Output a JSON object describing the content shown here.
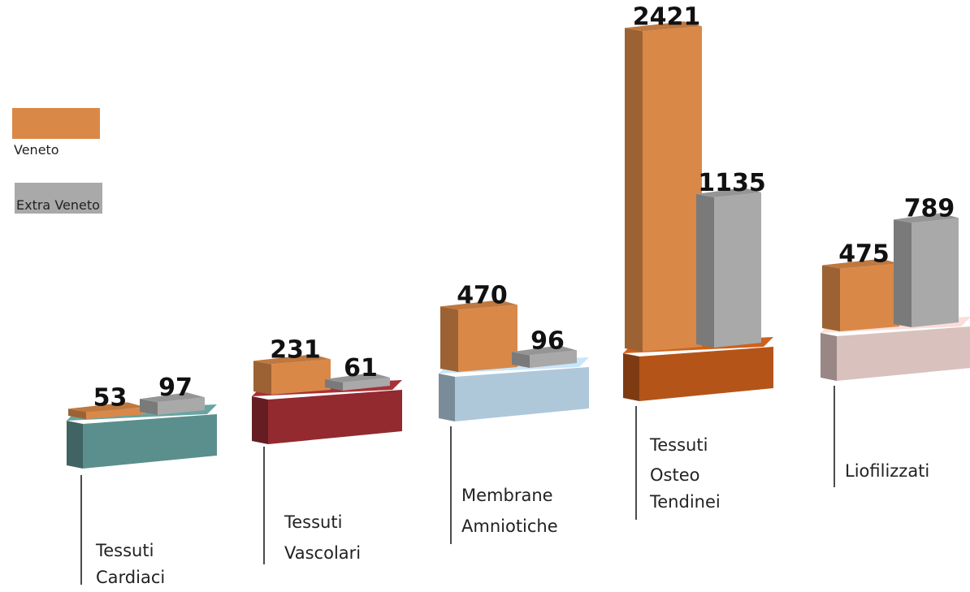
{
  "chart_data": {
    "type": "bar",
    "categories": [
      "Tessuti Cardiaci",
      "Tessuti Vascolari",
      "Membrane Amniotiche",
      "Tessuti Osteo Tendinei",
      "Liofilizzati"
    ],
    "category_colors": [
      "#5a8f8d",
      "#922a30",
      "#aec8da",
      "#b45418",
      "#d9c1bd"
    ],
    "series": [
      {
        "name": "Veneto",
        "color": "#d98848",
        "values": [
          53,
          231,
          470,
          2421,
          475
        ]
      },
      {
        "name": "Extra Veneto",
        "color": "#a9a9a9",
        "values": [
          97,
          61,
          96,
          1135,
          789
        ]
      }
    ]
  }
}
